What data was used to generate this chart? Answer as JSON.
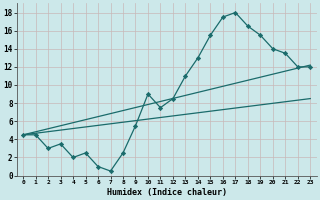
{
  "xlabel": "Humidex (Indice chaleur)",
  "bg_color": "#cce8ea",
  "grid_color": "#c8b8b8",
  "line_color": "#1a6b6b",
  "xlim": [
    -0.5,
    23.5
  ],
  "ylim": [
    0,
    19
  ],
  "xticks": [
    0,
    1,
    2,
    3,
    4,
    5,
    6,
    7,
    8,
    9,
    10,
    11,
    12,
    13,
    14,
    15,
    16,
    17,
    18,
    19,
    20,
    21,
    22,
    23
  ],
  "yticks": [
    0,
    2,
    4,
    6,
    8,
    10,
    12,
    14,
    16,
    18
  ],
  "main_x": [
    0,
    1,
    2,
    3,
    4,
    5,
    6,
    7,
    8,
    9,
    10,
    11,
    12,
    13,
    14,
    15,
    16,
    17,
    18,
    19,
    20,
    21,
    22,
    23
  ],
  "main_y": [
    4.5,
    4.5,
    3.0,
    3.5,
    2.0,
    2.5,
    1.0,
    0.5,
    2.5,
    5.5,
    9.0,
    7.5,
    8.5,
    11.0,
    13.0,
    15.5,
    17.5,
    18.0,
    16.5,
    15.5,
    14.0,
    13.5,
    12.0,
    12.0
  ],
  "upper_line_x": [
    0,
    23
  ],
  "upper_line_y": [
    4.5,
    12.2
  ],
  "lower_line_x": [
    0,
    23
  ],
  "lower_line_y": [
    4.5,
    8.5
  ]
}
